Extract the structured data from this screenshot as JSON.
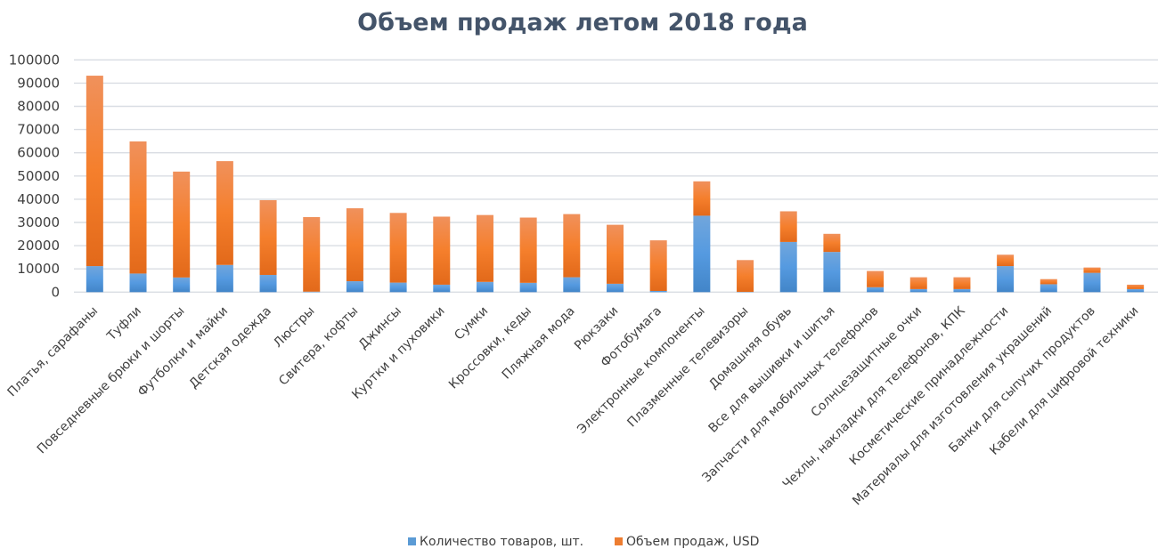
{
  "chart_data": {
    "type": "bar",
    "stacked": true,
    "title": "Объем продаж летом 2018 года",
    "xlabel": "",
    "ylabel": "",
    "ylim": [
      0,
      100000
    ],
    "yticks": [
      "0",
      "10000",
      "20000",
      "30000",
      "40000",
      "50000",
      "60000",
      "70000",
      "80000",
      "90000",
      "100000"
    ],
    "grid": true,
    "legend_position": "bottom",
    "categories": [
      "Платья, сарафаны",
      "Туфли",
      "Повседневные брюки и шорты",
      "Футболки и майки",
      "Детская одежда",
      "Люстры",
      "Свитера, кофты",
      "Джинсы",
      "Куртки и пуховики",
      "Сумки",
      "Кроссовки, кеды",
      "Пляжная мода",
      "Рюкзаки",
      "Фотобумага",
      "Электронные компоненты",
      "Плазменные телевизоры",
      "Домашняя обувь",
      "Все для вышивки и шитья",
      "Запчасти для мобильных телефонов",
      "Солнцезащитные очки",
      "Чехлы, накладки для телефонов, КПК",
      "Косметические принадлежности",
      "Материалы для изготовления украшений",
      "Банки для сыпучих продуктов",
      "Кабели для цифровой техники"
    ],
    "series": [
      {
        "name": "Количество товаров, шт.",
        "color": "#5b9bd5",
        "values": [
          11200,
          8000,
          6300,
          11700,
          7400,
          200,
          4700,
          4100,
          3200,
          4400,
          4000,
          6400,
          3600,
          500,
          32900,
          100,
          21600,
          17300,
          2100,
          1300,
          1300,
          11200,
          3400,
          8300,
          1300
        ]
      },
      {
        "name": "Объем продаж, USD",
        "color": "#ed7d31",
        "values": [
          82000,
          56900,
          45600,
          44700,
          32200,
          32100,
          31400,
          30000,
          29300,
          28800,
          28100,
          27200,
          25400,
          21800,
          14800,
          13700,
          13200,
          7800,
          7000,
          5100,
          5100,
          4900,
          2200,
          2300,
          1900
        ]
      }
    ]
  }
}
